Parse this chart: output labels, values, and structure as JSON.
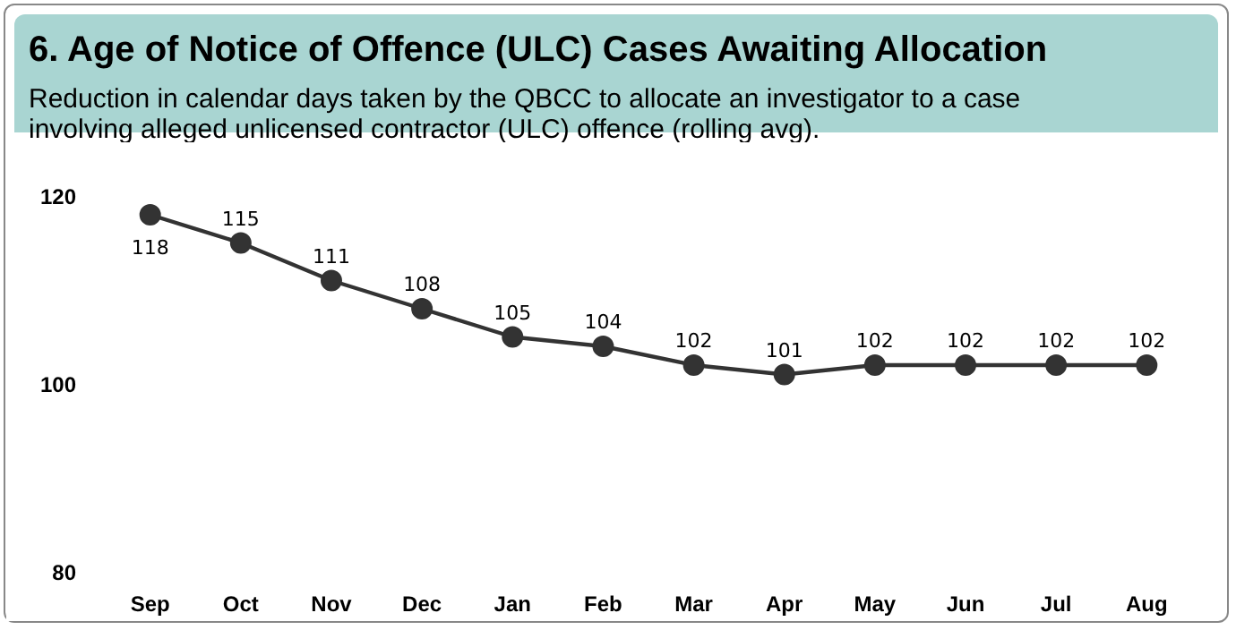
{
  "chart_data": {
    "type": "line",
    "title": "6. Age of Notice of Offence (ULC) Cases Awaiting Allocation",
    "subtitle": "Reduction in calendar days taken by the QBCC to allocate an investigator to a case involving alleged unlicensed contractor (ULC) offence (rolling avg).",
    "categories": [
      "Sep",
      "Oct",
      "Nov",
      "Dec",
      "Jan",
      "Feb",
      "Mar",
      "Apr",
      "May",
      "Jun",
      "Jul",
      "Aug"
    ],
    "series": [
      {
        "color": "#333333",
        "values": [
          118,
          115,
          111,
          108,
          105,
          104,
          102,
          101,
          102,
          102,
          102,
          102
        ]
      }
    ],
    "ylim": [
      80,
      120
    ],
    "yticks": [
      80,
      100,
      120
    ],
    "grid": false,
    "marker": "circle",
    "line_style": "solid",
    "data_labels": true
  }
}
